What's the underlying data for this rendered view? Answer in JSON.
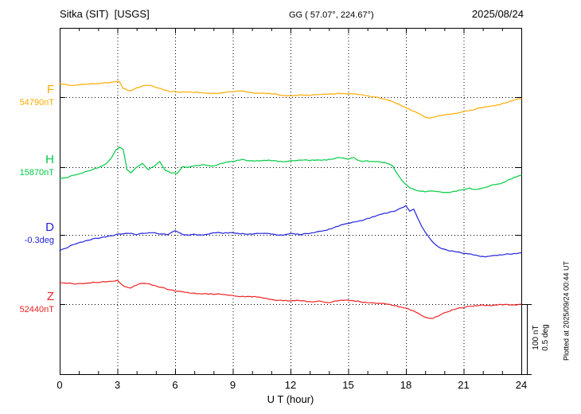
{
  "header": {
    "station_title": "Sitka (SIT)  [USGS]",
    "geo_label": "GG ( 57.07°, 224.67°)",
    "date": "2025/08/24"
  },
  "side_note": "Plotted at 2025/09/24 00:44 UT",
  "scale_bar": {
    "line1": "100 nT",
    "line2": "0.5 deg"
  },
  "chart_data": {
    "type": "line",
    "title": "Sitka (SIT) [USGS] magnetogram 2025/08/24",
    "xlabel": "U T (hour)",
    "x_range": [
      0,
      24
    ],
    "x_ticks": [
      0,
      3,
      6,
      9,
      12,
      15,
      18,
      21,
      24
    ],
    "grid": "dotted vertical lines every 3 hours; dotted horizontal baseline per channel",
    "amplitude_scale": {
      "nT_per_division": 100,
      "deg_per_division": 0.5
    },
    "series": [
      {
        "name": "F",
        "unit": "nT",
        "baseline": 54790,
        "baseline_label": "54790nT",
        "color": "#ffaa00",
        "points": [
          [
            0,
            38
          ],
          [
            0.3,
            36
          ],
          [
            0.6,
            33
          ],
          [
            1,
            34
          ],
          [
            1.4,
            36
          ],
          [
            1.8,
            37
          ],
          [
            2.2,
            39
          ],
          [
            2.6,
            40
          ],
          [
            2.9,
            43
          ],
          [
            3.1,
            44
          ],
          [
            3.3,
            24
          ],
          [
            3.5,
            20
          ],
          [
            3.7,
            18
          ],
          [
            4,
            26
          ],
          [
            4.3,
            31
          ],
          [
            4.6,
            33
          ],
          [
            5,
            27
          ],
          [
            5.4,
            20
          ],
          [
            5.8,
            15
          ],
          [
            6.2,
            13
          ],
          [
            6.6,
            14
          ],
          [
            7,
            13
          ],
          [
            7.5,
            12
          ],
          [
            8,
            11
          ],
          [
            8.5,
            12
          ],
          [
            9,
            15
          ],
          [
            9.5,
            17
          ],
          [
            10,
            13
          ],
          [
            10.5,
            11
          ],
          [
            11,
            9
          ],
          [
            11.5,
            5
          ],
          [
            12,
            4
          ],
          [
            12.5,
            7
          ],
          [
            13,
            4
          ],
          [
            13.5,
            7
          ],
          [
            14,
            9
          ],
          [
            14.5,
            11
          ],
          [
            15,
            9
          ],
          [
            15.5,
            7
          ],
          [
            16,
            4
          ],
          [
            16.5,
            0
          ],
          [
            17,
            -7
          ],
          [
            17.5,
            -18
          ],
          [
            18,
            -30
          ],
          [
            18.3,
            -38
          ],
          [
            18.6,
            -44
          ],
          [
            19,
            -56
          ],
          [
            19.3,
            -58
          ],
          [
            19.6,
            -54
          ],
          [
            20,
            -50
          ],
          [
            20.5,
            -45
          ],
          [
            21,
            -40
          ],
          [
            21.5,
            -36
          ],
          [
            22,
            -29
          ],
          [
            22.5,
            -24
          ],
          [
            23,
            -18
          ],
          [
            23.5,
            -11
          ],
          [
            24,
            -4
          ]
        ]
      },
      {
        "name": "H",
        "unit": "nT",
        "baseline": 15870,
        "baseline_label": "15870nT",
        "color": "#00cc44",
        "points": [
          [
            0,
            -33
          ],
          [
            0.4,
            -29
          ],
          [
            0.8,
            -22
          ],
          [
            1.2,
            -16
          ],
          [
            1.6,
            -9
          ],
          [
            2,
            -2
          ],
          [
            2.4,
            9
          ],
          [
            2.7,
            27
          ],
          [
            2.9,
            47
          ],
          [
            3.1,
            56
          ],
          [
            3.3,
            49
          ],
          [
            3.5,
            -7
          ],
          [
            3.7,
            -16
          ],
          [
            4,
            0
          ],
          [
            4.3,
            11
          ],
          [
            4.6,
            -7
          ],
          [
            4.9,
            2
          ],
          [
            5.2,
            16
          ],
          [
            5.5,
            -9
          ],
          [
            5.8,
            -16
          ],
          [
            6.1,
            -18
          ],
          [
            6.4,
            2
          ],
          [
            6.7,
            0
          ],
          [
            7,
            4
          ],
          [
            7.5,
            7
          ],
          [
            8,
            4
          ],
          [
            8.5,
            11
          ],
          [
            9,
            16
          ],
          [
            9.5,
            22
          ],
          [
            10,
            18
          ],
          [
            10.5,
            18
          ],
          [
            11,
            18
          ],
          [
            11.5,
            16
          ],
          [
            12,
            18
          ],
          [
            12.5,
            20
          ],
          [
            13,
            18
          ],
          [
            13.5,
            20
          ],
          [
            14,
            22
          ],
          [
            14.5,
            27
          ],
          [
            15,
            22
          ],
          [
            15.3,
            27
          ],
          [
            15.6,
            18
          ],
          [
            16,
            18
          ],
          [
            16.5,
            16
          ],
          [
            17,
            11
          ],
          [
            17.3,
            4
          ],
          [
            17.6,
            -22
          ],
          [
            17.9,
            -44
          ],
          [
            18.2,
            -58
          ],
          [
            18.5,
            -64
          ],
          [
            19,
            -69
          ],
          [
            19.5,
            -67
          ],
          [
            20,
            -71
          ],
          [
            20.5,
            -67
          ],
          [
            21,
            -62
          ],
          [
            21.3,
            -58
          ],
          [
            21.6,
            -62
          ],
          [
            22,
            -58
          ],
          [
            22.5,
            -49
          ],
          [
            23,
            -44
          ],
          [
            23.5,
            -33
          ],
          [
            24,
            -22
          ]
        ]
      },
      {
        "name": "D",
        "unit": "deg",
        "baseline": -0.3,
        "baseline_label": "-0.3deg",
        "color": "#2222dd",
        "points": [
          [
            0,
            -0.22
          ],
          [
            0.4,
            -0.18
          ],
          [
            0.8,
            -0.13
          ],
          [
            1.2,
            -0.1
          ],
          [
            1.6,
            -0.07
          ],
          [
            2,
            -0.05
          ],
          [
            2.4,
            -0.03
          ],
          [
            2.8,
            -0.01
          ],
          [
            3.2,
            0.01
          ],
          [
            3.6,
            0.02
          ],
          [
            4,
            0
          ],
          [
            4.4,
            0.02
          ],
          [
            4.8,
            0.03
          ],
          [
            5.2,
            0.01
          ],
          [
            5.6,
            0
          ],
          [
            6,
            0.06
          ],
          [
            6.3,
            0.02
          ],
          [
            6.6,
            0
          ],
          [
            7,
            0.01
          ],
          [
            7.5,
            0
          ],
          [
            8,
            0.03
          ],
          [
            8.5,
            0.02
          ],
          [
            9,
            0.03
          ],
          [
            9.5,
            0.02
          ],
          [
            10,
            0.01
          ],
          [
            10.5,
            0.02
          ],
          [
            11,
            0.01
          ],
          [
            11.5,
            0
          ],
          [
            12,
            0.02
          ],
          [
            12.5,
            0
          ],
          [
            13,
            0.02
          ],
          [
            13.5,
            0.05
          ],
          [
            14,
            0.08
          ],
          [
            14.5,
            0.12
          ],
          [
            15,
            0.16
          ],
          [
            15.5,
            0.19
          ],
          [
            16,
            0.23
          ],
          [
            16.5,
            0.27
          ],
          [
            17,
            0.3
          ],
          [
            17.5,
            0.34
          ],
          [
            17.8,
            0.38
          ],
          [
            18,
            0.41
          ],
          [
            18.2,
            0.33
          ],
          [
            18.4,
            0.36
          ],
          [
            18.6,
            0.24
          ],
          [
            18.8,
            0.13
          ],
          [
            19,
            0.04
          ],
          [
            19.3,
            -0.07
          ],
          [
            19.6,
            -0.15
          ],
          [
            20,
            -0.2
          ],
          [
            20.5,
            -0.23
          ],
          [
            21,
            -0.26
          ],
          [
            21.5,
            -0.28
          ],
          [
            22,
            -0.3
          ],
          [
            22.5,
            -0.29
          ],
          [
            23,
            -0.28
          ],
          [
            23.5,
            -0.27
          ],
          [
            24,
            -0.25
          ]
        ]
      },
      {
        "name": "Z",
        "unit": "nT",
        "baseline": 52440,
        "baseline_label": "52440nT",
        "color": "#ee2222",
        "points": [
          [
            0,
            60
          ],
          [
            0.4,
            58
          ],
          [
            0.8,
            56
          ],
          [
            1.2,
            57
          ],
          [
            1.6,
            59
          ],
          [
            2,
            60
          ],
          [
            2.4,
            62
          ],
          [
            2.8,
            64
          ],
          [
            3,
            67
          ],
          [
            3.2,
            56
          ],
          [
            3.4,
            49
          ],
          [
            3.7,
            45
          ],
          [
            4,
            53
          ],
          [
            4.4,
            58
          ],
          [
            4.8,
            53
          ],
          [
            5.2,
            47
          ],
          [
            5.6,
            41
          ],
          [
            6,
            36
          ],
          [
            6.5,
            33
          ],
          [
            7,
            31
          ],
          [
            7.5,
            29
          ],
          [
            8,
            27
          ],
          [
            8.5,
            27
          ],
          [
            9,
            24
          ],
          [
            9.5,
            22
          ],
          [
            10,
            20
          ],
          [
            10.5,
            18
          ],
          [
            11,
            13
          ],
          [
            11.5,
            11
          ],
          [
            12,
            9
          ],
          [
            12.5,
            9
          ],
          [
            13,
            7
          ],
          [
            13.5,
            9
          ],
          [
            14,
            4
          ],
          [
            14.5,
            9
          ],
          [
            15,
            11
          ],
          [
            15.5,
            9
          ],
          [
            16,
            4
          ],
          [
            16.5,
            2
          ],
          [
            17,
            0
          ],
          [
            17.5,
            -4
          ],
          [
            18,
            -11
          ],
          [
            18.5,
            -22
          ],
          [
            18.8,
            -31
          ],
          [
            19.1,
            -38
          ],
          [
            19.4,
            -40
          ],
          [
            19.7,
            -33
          ],
          [
            20,
            -24
          ],
          [
            20.4,
            -16
          ],
          [
            20.8,
            -10
          ],
          [
            21.2,
            -6
          ],
          [
            21.6,
            -4
          ],
          [
            22,
            -2
          ],
          [
            22.5,
            -4
          ],
          [
            23,
            -2
          ],
          [
            23.5,
            -2
          ],
          [
            24,
            0
          ]
        ]
      }
    ]
  }
}
